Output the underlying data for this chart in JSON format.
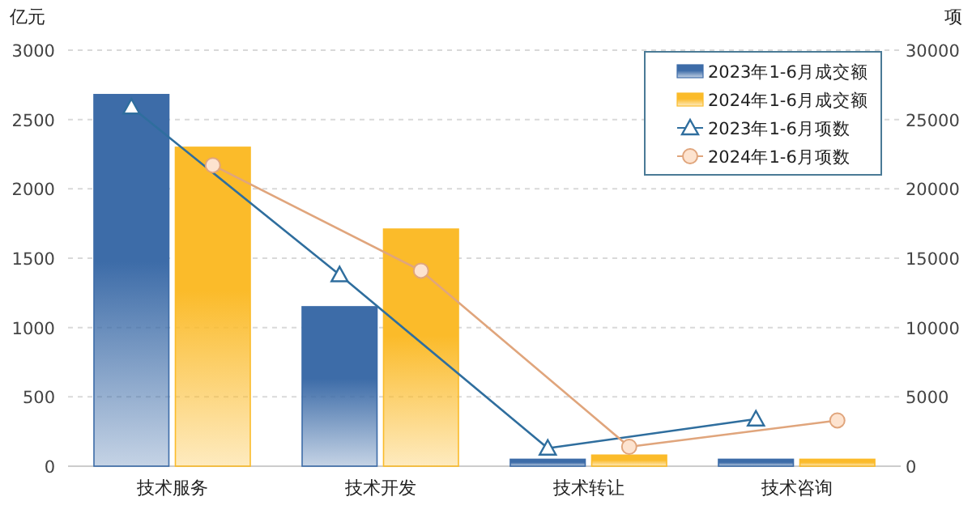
{
  "chart_data": {
    "type": "bar",
    "ylabel": "亿元",
    "y2label": "项",
    "categories": [
      "技术服务",
      "技术开发",
      "技术转让",
      "技术咨询"
    ],
    "series": [
      {
        "name": "2023年1-6月成交额",
        "color": "#3d6ca8",
        "values": [
          2680,
          1150,
          50,
          50
        ]
      },
      {
        "name": "2024年1-6月成交额",
        "color": "#fbbb2a",
        "values": [
          2300,
          1710,
          80,
          50
        ]
      },
      {
        "name": "2023年1-6月项数",
        "type": "line",
        "axis": "y2",
        "marker": "triangle",
        "color": "#2f6e9e",
        "values": [
          25900,
          13800,
          1300,
          3400
        ]
      },
      {
        "name": "2024年1-6月项数",
        "type": "line",
        "axis": "y2",
        "marker": "circle",
        "color": "#e0a57c",
        "values": [
          21700,
          14100,
          1400,
          3300
        ]
      }
    ],
    "ylim": [
      0,
      3000
    ],
    "yticks": [
      0,
      500,
      1000,
      1500,
      2000,
      2500,
      3000
    ],
    "y2lim": [
      0,
      30000
    ],
    "y2ticks": [
      0,
      5000,
      10000,
      15000,
      20000,
      25000,
      30000
    ],
    "grid": "y",
    "legend": "top right"
  }
}
